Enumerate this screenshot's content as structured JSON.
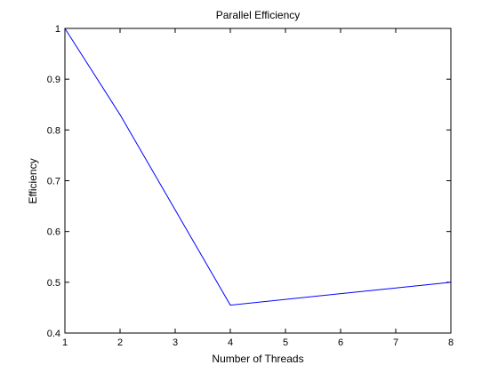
{
  "chart_data": {
    "type": "line",
    "title": "Parallel Efficiency",
    "xlabel": "Number of Threads",
    "ylabel": "Efficiency",
    "xlim": [
      1,
      8
    ],
    "ylim": [
      0.4,
      1
    ],
    "xticks": [
      1,
      2,
      3,
      4,
      5,
      6,
      7,
      8
    ],
    "yticks": [
      0.4,
      0.5,
      0.6,
      0.7,
      0.8,
      0.9,
      1
    ],
    "ytick_labels": [
      "0.4",
      "0.5",
      "0.6",
      "0.7",
      "0.8",
      "0.9",
      "1"
    ],
    "grid": false,
    "legend": "none",
    "series": [
      {
        "x": [
          1,
          2,
          4,
          8
        ],
        "y": [
          1.0,
          0.83,
          0.455,
          0.5
        ],
        "color": "#0000ff"
      }
    ]
  }
}
